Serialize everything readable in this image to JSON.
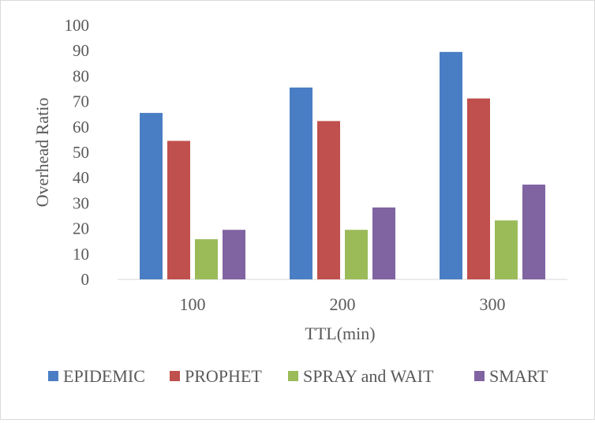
{
  "chart_data": {
    "type": "bar",
    "title": "",
    "xlabel": "TTL(min)",
    "ylabel": "Overhead Ratio",
    "ylim": [
      0,
      100
    ],
    "yticks": [
      0,
      10,
      20,
      30,
      40,
      50,
      60,
      70,
      80,
      90,
      100
    ],
    "grid": false,
    "legend_position": "bottom",
    "categories": [
      "100",
      "200",
      "300"
    ],
    "series": [
      {
        "name": "EPIDEMIC",
        "color": "#4a7ec4",
        "values": [
          65.5,
          75.5,
          89.5
        ]
      },
      {
        "name": "PROPHET",
        "color": "#c0504d",
        "values": [
          54.5,
          62.3,
          71.2
        ]
      },
      {
        "name": "SPRAY and WAIT",
        "color": "#9bbb59",
        "values": [
          15.8,
          19.5,
          23.2
        ]
      },
      {
        "name": "SMART",
        "color": "#8064a2",
        "values": [
          19.5,
          28.3,
          37.3
        ]
      }
    ]
  }
}
